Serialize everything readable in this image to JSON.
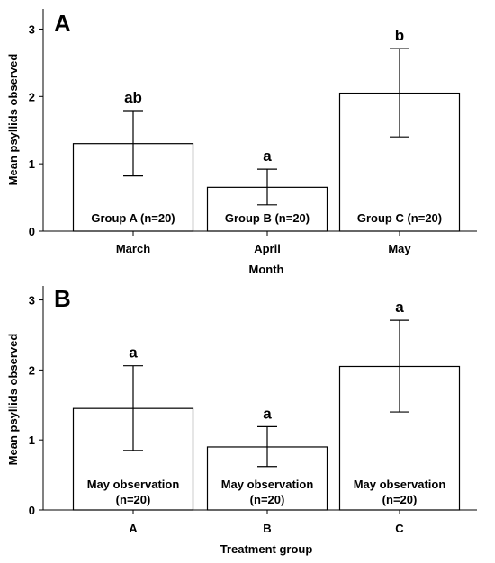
{
  "chart_data": [
    {
      "type": "bar",
      "panel_label": "A",
      "categories": [
        "March",
        "April",
        "May"
      ],
      "values": [
        1.3,
        0.65,
        2.05
      ],
      "error_low": [
        0.82,
        0.39,
        1.4
      ],
      "error_high": [
        1.79,
        0.92,
        2.71
      ],
      "significance_letters": [
        "ab",
        "a",
        "b"
      ],
      "bar_labels": [
        [
          "Group A (n=20)"
        ],
        [
          "Group B (n=20)"
        ],
        [
          "Group C (n=20)"
        ]
      ],
      "xlabel": "Month",
      "ylabel": "Mean psyllids observed",
      "yticks": [
        0,
        1,
        2,
        3
      ],
      "ylim": [
        0,
        3.3
      ],
      "grid": false,
      "colors": {
        "bar_fill": "#ffffff",
        "bar_stroke": "#000000"
      }
    },
    {
      "type": "bar",
      "panel_label": "B",
      "categories": [
        "A",
        "B",
        "C"
      ],
      "values": [
        1.45,
        0.9,
        2.05
      ],
      "error_low": [
        0.85,
        0.62,
        1.4
      ],
      "error_high": [
        2.06,
        1.19,
        2.71
      ],
      "significance_letters": [
        "a",
        "a",
        "a"
      ],
      "bar_labels": [
        [
          "May observation",
          "(n=20)"
        ],
        [
          "May observation",
          "(n=20)"
        ],
        [
          "May observation",
          "(n=20)"
        ]
      ],
      "xlabel": "Treatment group",
      "ylabel": "Mean psyllids observed",
      "yticks": [
        0,
        1,
        2,
        3
      ],
      "ylim": [
        0,
        3.2
      ],
      "grid": false,
      "colors": {
        "bar_fill": "#ffffff",
        "bar_stroke": "#000000"
      }
    }
  ]
}
